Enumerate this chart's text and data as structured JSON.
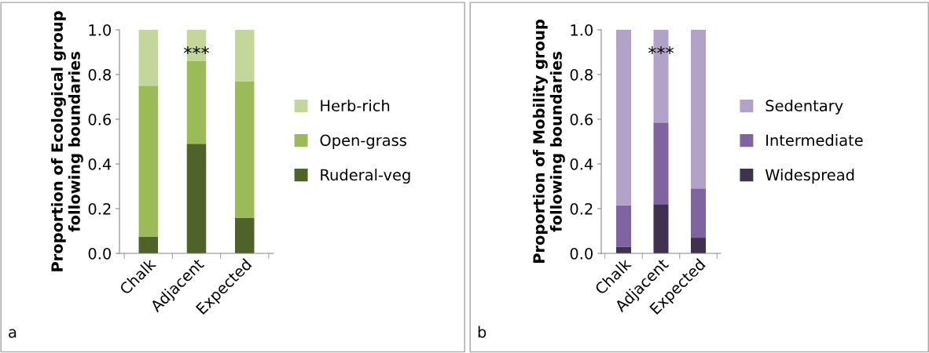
{
  "chart_data": [
    {
      "type": "bar",
      "stacked": true,
      "ylabel": "Proportion of Ecological group\nfollowing boundaries",
      "categories": [
        "Chalk",
        "Adjacent",
        "Expected"
      ],
      "ylim": [
        0,
        1.0
      ],
      "yticks": [
        {
          "value": 0,
          "label": "0.0"
        },
        {
          "value": 0.2,
          "label": "0.2"
        },
        {
          "value": 0.4,
          "label": "0.4"
        },
        {
          "value": 0.6,
          "label": "0.6"
        },
        {
          "value": 0.8,
          "label": "0.8"
        },
        {
          "value": 1.0,
          "label": "1.0"
        }
      ],
      "legend": "right",
      "grid": false,
      "series": [
        {
          "name": "Ruderal-veg",
          "color": "#4f6228",
          "values": [
            0.075,
            0.49,
            0.16
          ]
        },
        {
          "name": "Open-grass",
          "color": "#9bbb59",
          "values": [
            0.675,
            0.37,
            0.61
          ]
        },
        {
          "name": "Herb-rich",
          "color": "#c4d79b",
          "values": [
            0.25,
            0.14,
            0.23
          ]
        }
      ],
      "annotations": [
        "***",
        "a"
      ]
    },
    {
      "type": "bar",
      "stacked": true,
      "ylabel": "Proportion of Mobility group\nfollowing boundaries",
      "categories": [
        "Chalk",
        "Adjacent",
        "Expected"
      ],
      "ylim": [
        0,
        1.0
      ],
      "yticks": [
        {
          "value": 0,
          "label": "0.0"
        },
        {
          "value": 0.2,
          "label": "0.2"
        },
        {
          "value": 0.4,
          "label": "0.4"
        },
        {
          "value": 0.6,
          "label": "0.6"
        },
        {
          "value": 0.8,
          "label": "0.8"
        },
        {
          "value": 1.0,
          "label": "1.0"
        }
      ],
      "legend": "right",
      "grid": false,
      "series": [
        {
          "name": "Widespread",
          "color": "#403151",
          "values": [
            0.03,
            0.22,
            0.07
          ]
        },
        {
          "name": "Intermediate",
          "color": "#8064a2",
          "values": [
            0.185,
            0.365,
            0.22
          ]
        },
        {
          "name": "Sedentary",
          "color": "#b3a2c7",
          "values": [
            0.785,
            0.415,
            0.71
          ]
        }
      ],
      "annotations": [
        "***",
        "b"
      ]
    }
  ]
}
